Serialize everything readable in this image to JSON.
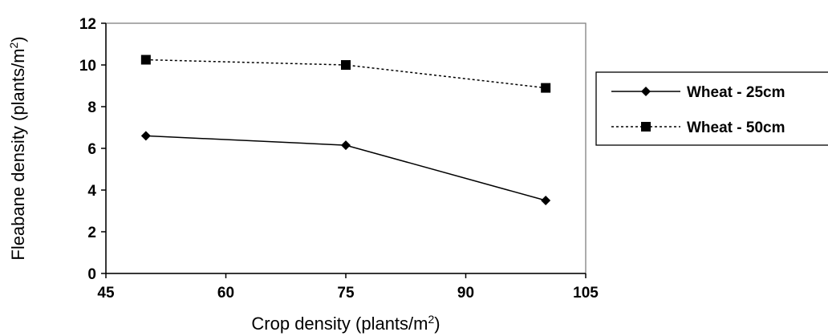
{
  "chart_data": {
    "type": "line",
    "xlabel": "Crop density (plants/m",
    "xlabel_sup": "2",
    "xlabel_end": ")",
    "ylabel": "Fleabane density (plants/m",
    "ylabel_sup": "2",
    "ylabel_end": ")",
    "xlim": [
      45,
      105
    ],
    "ylim": [
      0,
      12
    ],
    "x_ticks": [
      "45",
      "60",
      "75",
      "90",
      "105"
    ],
    "y_ticks": [
      "0",
      "2",
      "4",
      "6",
      "8",
      "10",
      "12"
    ],
    "grid": false,
    "legend_position": "right",
    "series": [
      {
        "name": "Wheat - 25cm",
        "marker": "diamond",
        "line_style": "solid",
        "color": "#000000",
        "x": [
          50,
          75,
          100
        ],
        "y": [
          6.6,
          6.15,
          3.5
        ]
      },
      {
        "name": "Wheat - 50cm",
        "marker": "square",
        "line_style": "dotted",
        "color": "#000000",
        "x": [
          50,
          75,
          100
        ],
        "y": [
          10.25,
          10.0,
          8.9
        ]
      }
    ]
  }
}
